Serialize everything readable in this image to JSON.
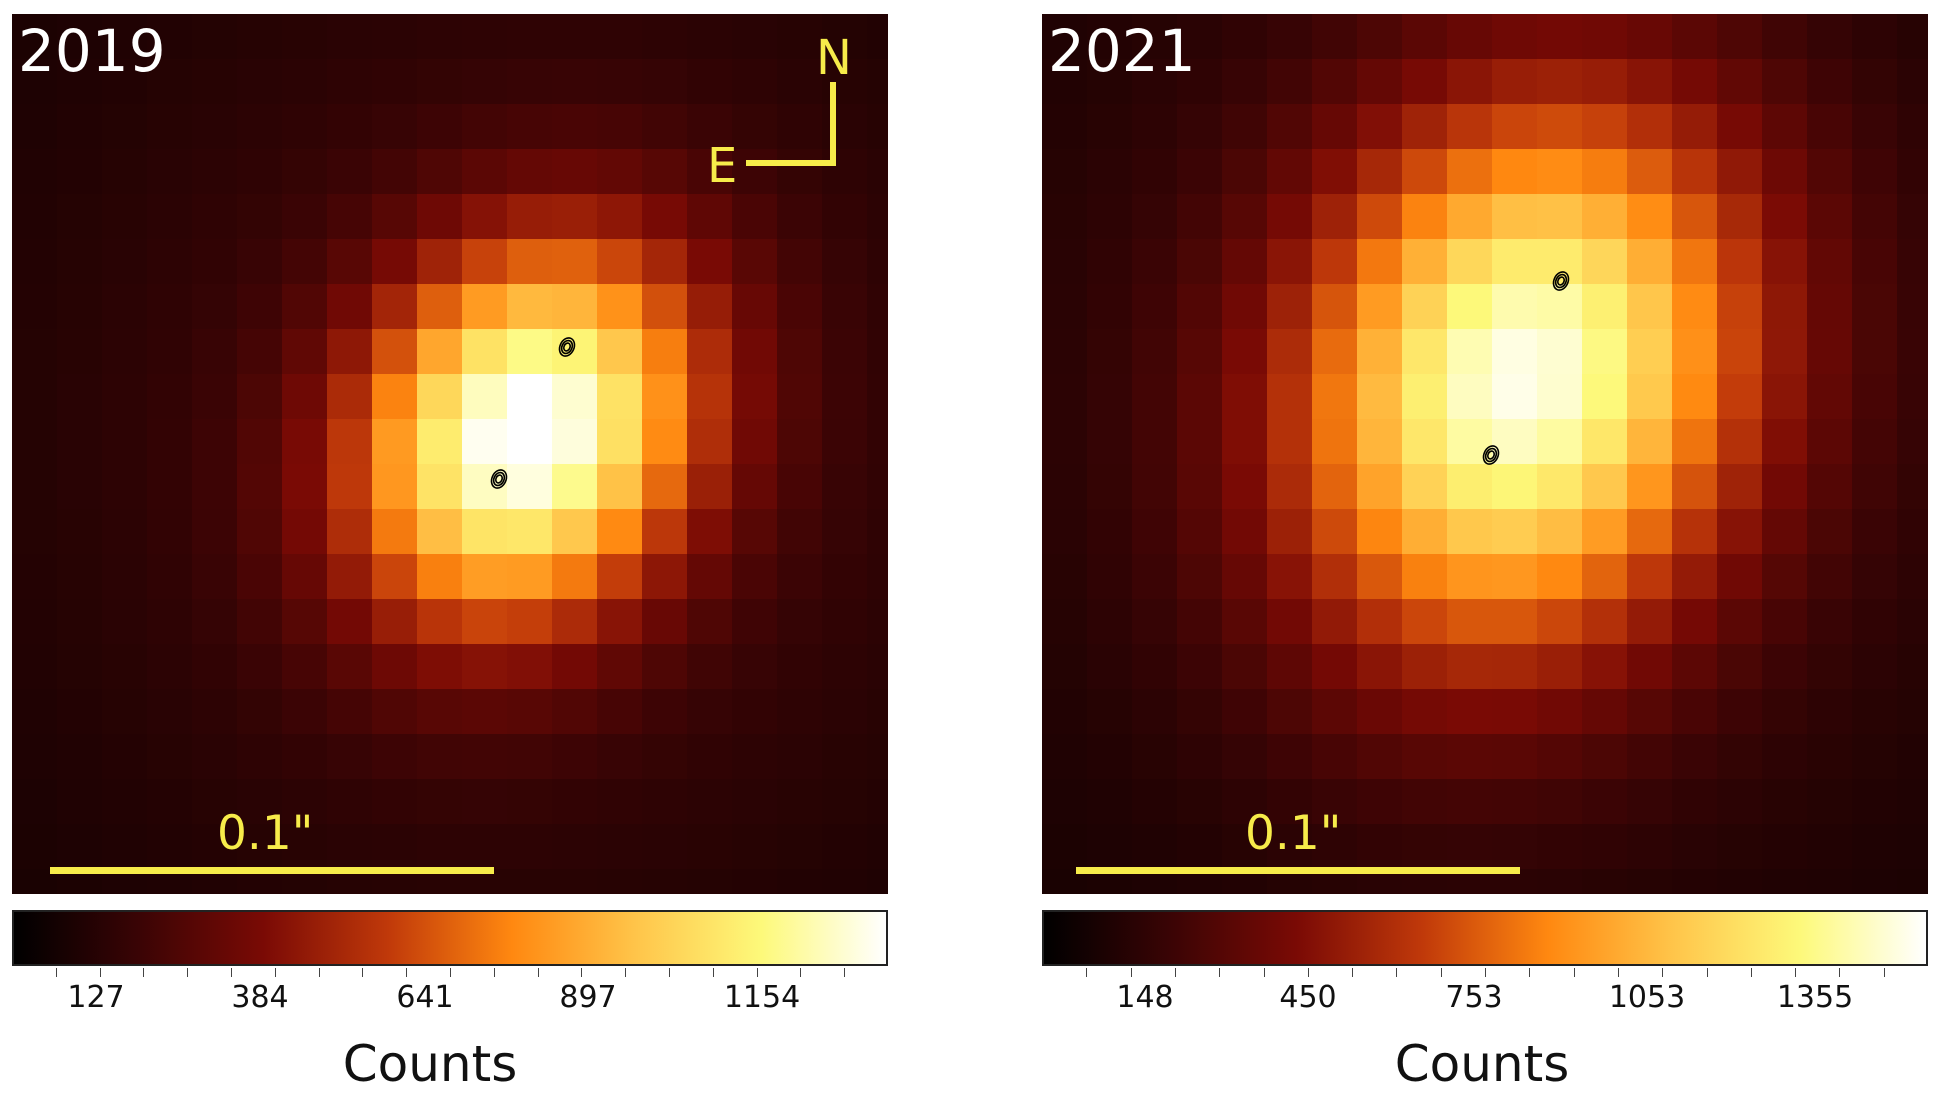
{
  "panels": [
    {
      "year_label": "2019",
      "scale_label": "0.1\"",
      "compass": {
        "north": "N",
        "east": "E"
      },
      "colorbar": {
        "ticks": [
          "127",
          "384",
          "641",
          "897",
          "1154"
        ],
        "title": "Counts"
      }
    },
    {
      "year_label": "2021",
      "scale_label": "0.1\"",
      "colorbar": {
        "ticks": [
          "148",
          "450",
          "753",
          "1053",
          "1355"
        ],
        "title": "Counts"
      }
    }
  ],
  "colors": {
    "annotation": "#f7ec4a",
    "background": "#120202",
    "colormap": [
      "#000000",
      "#3a0405",
      "#7a0a05",
      "#c0390a",
      "#ff8810",
      "#ffc54a",
      "#fdf97a",
      "#ffffff"
    ]
  },
  "icons": [
    "source-contour-icon",
    "compass-icon"
  ]
}
